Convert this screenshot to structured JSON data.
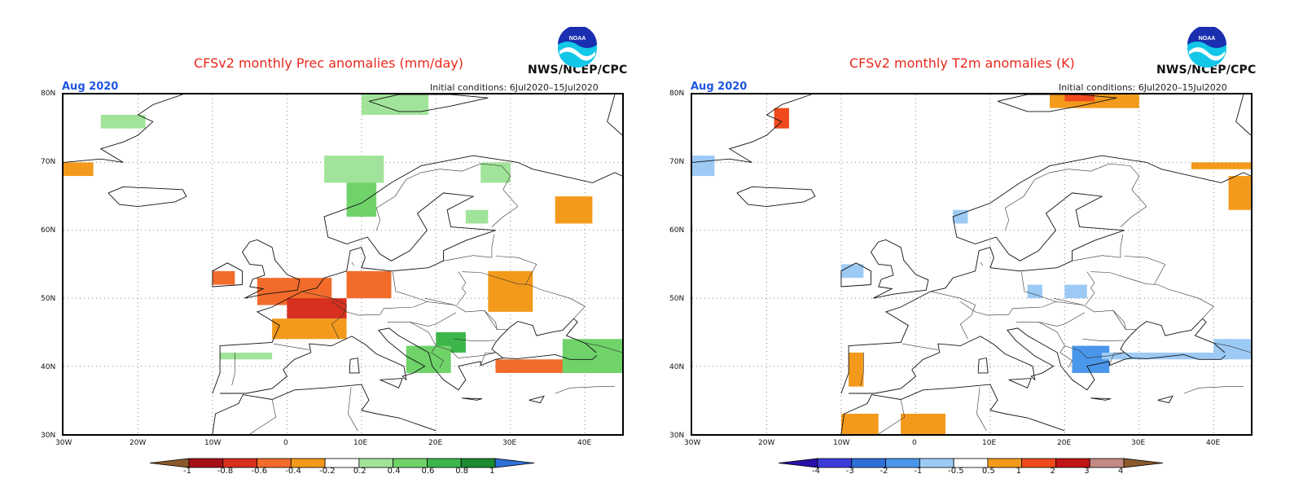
{
  "prec": {
    "title": "CFSv2 monthly Prec anomalies (mm/day)",
    "month": "Aug 2020",
    "initial_conditions": "Initial conditions: 6Jul2020–15Jul2020",
    "agency": "NWS/NCEP/CPC",
    "logo_text": "NOAA",
    "lat_labels": [
      "80N",
      "70N",
      "60N",
      "50N",
      "40N",
      "30N"
    ],
    "lon_labels": [
      "30W",
      "20W",
      "10W",
      "0",
      "10E",
      "20E",
      "30E",
      "40E"
    ],
    "colorbar": {
      "ticks": [
        "-1",
        "-0.8",
        "-0.6",
        "-0.4",
        "-0.2",
        "0.2",
        "0.4",
        "0.6",
        "0.8",
        "1"
      ],
      "colors": [
        "#8b5a2b",
        "#a50f15",
        "#d7301f",
        "#f26b2b",
        "#f39a1c",
        "#ffffff",
        "#a1e39a",
        "#6fd36a",
        "#3cb64b",
        "#1c8a2e",
        "#2f6fd8"
      ]
    }
  },
  "t2m": {
    "title": "CFSv2 monthly T2m anomalies (K)",
    "month": "Aug 2020",
    "initial_conditions": "Initial conditions: 6Jul2020–15Jul2020",
    "agency": "NWS/NCEP/CPC",
    "logo_text": "NOAA",
    "lat_labels": [
      "80N",
      "70N",
      "60N",
      "50N",
      "40N",
      "30N"
    ],
    "lon_labels": [
      "30W",
      "20W",
      "10W",
      "0",
      "10E",
      "20E",
      "30E",
      "40E"
    ],
    "colorbar": {
      "ticks": [
        "-4",
        "-3",
        "-2",
        "-1",
        "-0.5",
        "0.5",
        "1",
        "2",
        "3",
        "4"
      ],
      "colors": [
        "#2b0fa8",
        "#3b3bd8",
        "#2f6fd8",
        "#4a96ea",
        "#9ccaf5",
        "#ffffff",
        "#f39a1c",
        "#f04a1c",
        "#c01414",
        "#c48a86",
        "#8b5a2b"
      ]
    }
  },
  "map_extent": {
    "lon": [
      -30,
      45
    ],
    "lat": [
      30,
      80
    ]
  },
  "prec_anomaly_cells": [
    {
      "lon": -4,
      "lat": 49,
      "w": 10,
      "h": 4,
      "value": -0.5
    },
    {
      "lon": 0,
      "lat": 47,
      "w": 8,
      "h": 3,
      "value": -0.7
    },
    {
      "lon": 8,
      "lat": 50,
      "w": 6,
      "h": 4,
      "value": -0.5
    },
    {
      "lon": 28,
      "lat": 49,
      "w": 4,
      "h": 4,
      "value": -0.5
    },
    {
      "lon": -10,
      "lat": 52,
      "w": 3,
      "h": 2,
      "value": -0.5
    },
    {
      "lon": -30,
      "lat": 68,
      "w": 4,
      "h": 2,
      "value": -0.3
    },
    {
      "lon": -2,
      "lat": 44,
      "w": 10,
      "h": 3,
      "value": -0.3
    },
    {
      "lon": 27,
      "lat": 48,
      "w": 6,
      "h": 6,
      "value": -0.3
    },
    {
      "lon": 36,
      "lat": 61,
      "w": 5,
      "h": 4,
      "value": -0.3
    },
    {
      "lon": 28,
      "lat": 39,
      "w": 16,
      "h": 2,
      "value": -0.6
    },
    {
      "lon": 8,
      "lat": 62,
      "w": 4,
      "h": 6,
      "value": 0.5
    },
    {
      "lon": 5,
      "lat": 67,
      "w": 8,
      "h": 4,
      "value": 0.3
    },
    {
      "lon": 10,
      "lat": 77,
      "w": 9,
      "h": 3,
      "value": 0.3
    },
    {
      "lon": -25,
      "lat": 75,
      "w": 6,
      "h": 2,
      "value": 0.3
    },
    {
      "lon": 20,
      "lat": 42,
      "w": 4,
      "h": 3,
      "value": 0.6
    },
    {
      "lon": 16,
      "lat": 39,
      "w": 6,
      "h": 4,
      "value": 0.4
    },
    {
      "lon": 37,
      "lat": 39,
      "w": 8,
      "h": 5,
      "value": 0.4
    },
    {
      "lon": 24,
      "lat": 61,
      "w": 3,
      "h": 2,
      "value": 0.3
    },
    {
      "lon": 26,
      "lat": 67,
      "w": 4,
      "h": 3,
      "value": 0.3
    },
    {
      "lon": -9,
      "lat": 41,
      "w": 7,
      "h": 1,
      "value": 0.3
    }
  ],
  "t2m_anomaly_cells": [
    {
      "lon": 18,
      "lat": 78,
      "w": 12,
      "h": 2,
      "value": 0.8
    },
    {
      "lon": 20,
      "lat": 79,
      "w": 4,
      "h": 1,
      "value": 1.5
    },
    {
      "lon": -19,
      "lat": 75,
      "w": 2,
      "h": 3,
      "value": 1.5
    },
    {
      "lon": 37,
      "lat": 69,
      "w": 8,
      "h": 1,
      "value": 0.8
    },
    {
      "lon": 42,
      "lat": 63,
      "w": 3,
      "h": 5,
      "value": 0.8
    },
    {
      "lon": -9,
      "lat": 37,
      "w": 2,
      "h": 5,
      "value": 0.8
    },
    {
      "lon": -10,
      "lat": 30,
      "w": 5,
      "h": 3,
      "value": 0.8
    },
    {
      "lon": -2,
      "lat": 30,
      "w": 6,
      "h": 3,
      "value": 0.8
    },
    {
      "lon": 21,
      "lat": 39,
      "w": 5,
      "h": 4,
      "value": -1.2
    },
    {
      "lon": 25,
      "lat": 41,
      "w": 17,
      "h": 1,
      "value": -1.0
    },
    {
      "lon": 40,
      "lat": 41,
      "w": 5,
      "h": 3,
      "value": -1.0
    },
    {
      "lon": 15,
      "lat": 50,
      "w": 2,
      "h": 2,
      "value": -1.0
    },
    {
      "lon": 20,
      "lat": 50,
      "w": 3,
      "h": 2,
      "value": -1.0
    },
    {
      "lon": -30,
      "lat": 68,
      "w": 3,
      "h": 3,
      "value": -1.0
    },
    {
      "lon": -10,
      "lat": 53,
      "w": 3,
      "h": 2,
      "value": -1.0
    },
    {
      "lon": 5,
      "lat": 61,
      "w": 2,
      "h": 2,
      "value": -1.0
    }
  ]
}
